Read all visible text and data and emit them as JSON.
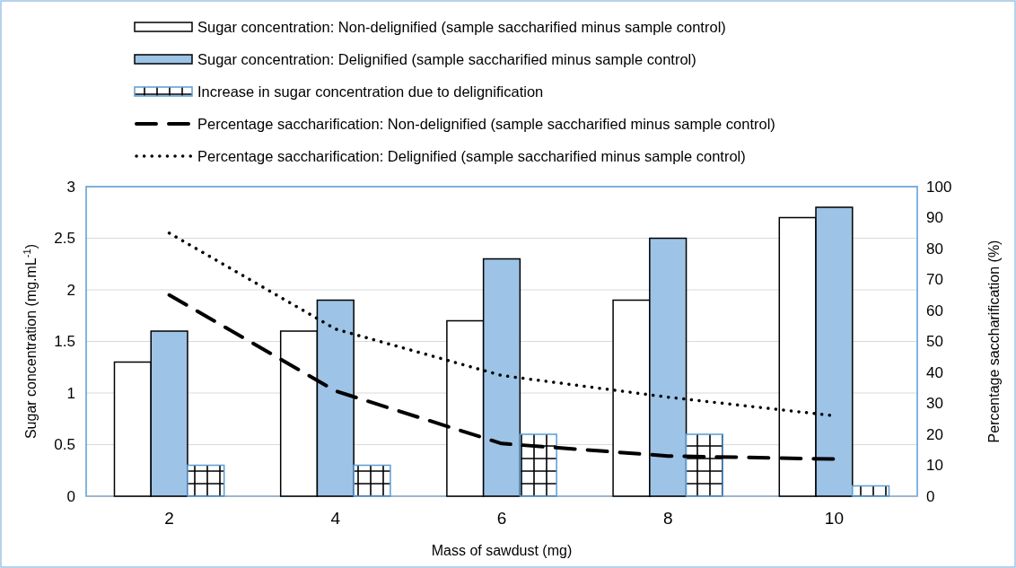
{
  "chart_data": {
    "type": "bar",
    "xlabel": "Mass of sawdust (mg)",
    "ylabel": "Sugar concentration (mg.mL$^{-1}$)",
    "y2label": "Percentage saccharification (%)",
    "categories": [
      "2",
      "4",
      "6",
      "8",
      "10"
    ],
    "series": [
      {
        "name": "Sugar concentration: Non-delignified (sample saccharified minus sample control)",
        "color": "#ffffff",
        "values": [
          1.3,
          1.6,
          1.7,
          1.9,
          2.7
        ]
      },
      {
        "name": "Sugar concentration: Delignified (sample saccharified minus sample control)",
        "color": "#9dc3e6",
        "values": [
          1.6,
          1.9,
          2.3,
          2.5,
          2.8
        ]
      },
      {
        "name": "Increase in sugar concentration due to delignification",
        "color": "#5b9bd5",
        "values": [
          0.3,
          0.3,
          0.6,
          0.6,
          0.1
        ]
      },
      {
        "name": "Percentage saccharification: Non-delignified (sample saccharified minus sample control)",
        "type": "line",
        "axis": "y2",
        "color": "#000000",
        "line_style": "dashed",
        "values": [
          65,
          34,
          17,
          13,
          12
        ]
      },
      {
        "name": "Percentage saccharification: Delignified (sample saccharified minus sample control)",
        "type": "line",
        "axis": "y2",
        "color": "#000000",
        "line_style": "dotted",
        "values": [
          85,
          54,
          39,
          32,
          26
        ]
      }
    ],
    "ylim": [
      0,
      3
    ],
    "yticks": [
      0,
      0.5,
      1,
      1.5,
      2,
      2.5,
      3
    ],
    "y2lim": [
      0,
      100
    ],
    "y2ticks": [
      0,
      10,
      20,
      30,
      40,
      50,
      60,
      70,
      80,
      90,
      100
    ],
    "grid": "y",
    "legend": "top"
  }
}
